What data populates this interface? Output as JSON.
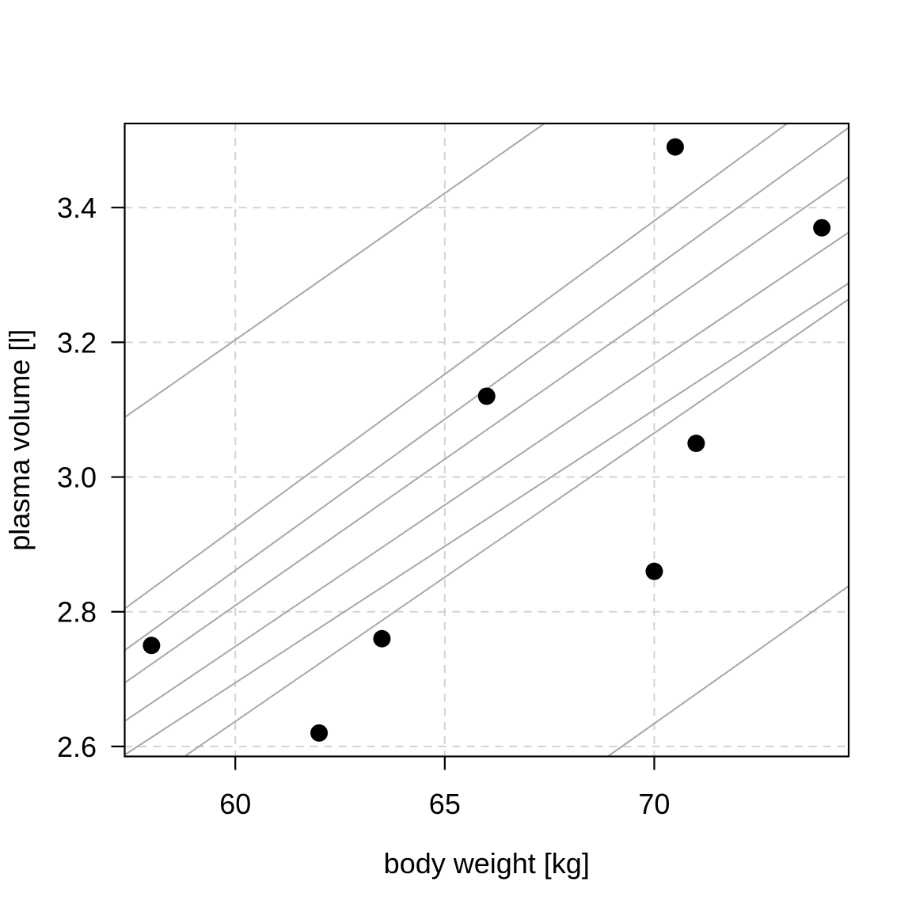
{
  "figure": {
    "background": "#ffffff"
  },
  "chart_data": {
    "type": "scatter",
    "title": "",
    "xlabel": "body weight [kg]",
    "ylabel": "plasma volume [l]",
    "xlim": [
      57.36,
      74.64
    ],
    "ylim": [
      2.5852,
      3.5248
    ],
    "xticks": [
      60,
      65,
      70
    ],
    "xtick_labels": [
      "60",
      "65",
      "70"
    ],
    "yticks": [
      2.6,
      2.8,
      3.0,
      3.2,
      3.4
    ],
    "ytick_labels": [
      "2.6",
      "2.8",
      "3.0",
      "3.2",
      "3.4"
    ],
    "grid": true,
    "legend": null,
    "points": {
      "x": [
        58.0,
        70.0,
        74.0,
        63.5,
        62.0,
        70.5,
        71.0,
        66.0
      ],
      "y": [
        2.75,
        2.86,
        3.37,
        2.76,
        2.62,
        3.49,
        3.05,
        3.12
      ]
    },
    "sample_lines": [
      {
        "intercept": 0.5905,
        "slope": 0.04355
      },
      {
        "intercept": 0.1925,
        "slope": 0.04554
      },
      {
        "intercept": 0.1673,
        "slope": 0.0449
      },
      {
        "intercept": 0.2016,
        "slope": 0.04346
      },
      {
        "intercept": 0.229,
        "slope": 0.04199
      },
      {
        "intercept": 0.2633,
        "slope": 0.04052
      },
      {
        "intercept": 0.0679,
        "slope": 0.04282
      },
      {
        "intercept": -0.4453,
        "slope": 0.04399
      }
    ],
    "colors": {
      "point": "#000000",
      "sample_line": "#a8a8a8",
      "grid_line": "#d3d3d3",
      "axis": "#000000",
      "background": "#ffffff"
    }
  }
}
